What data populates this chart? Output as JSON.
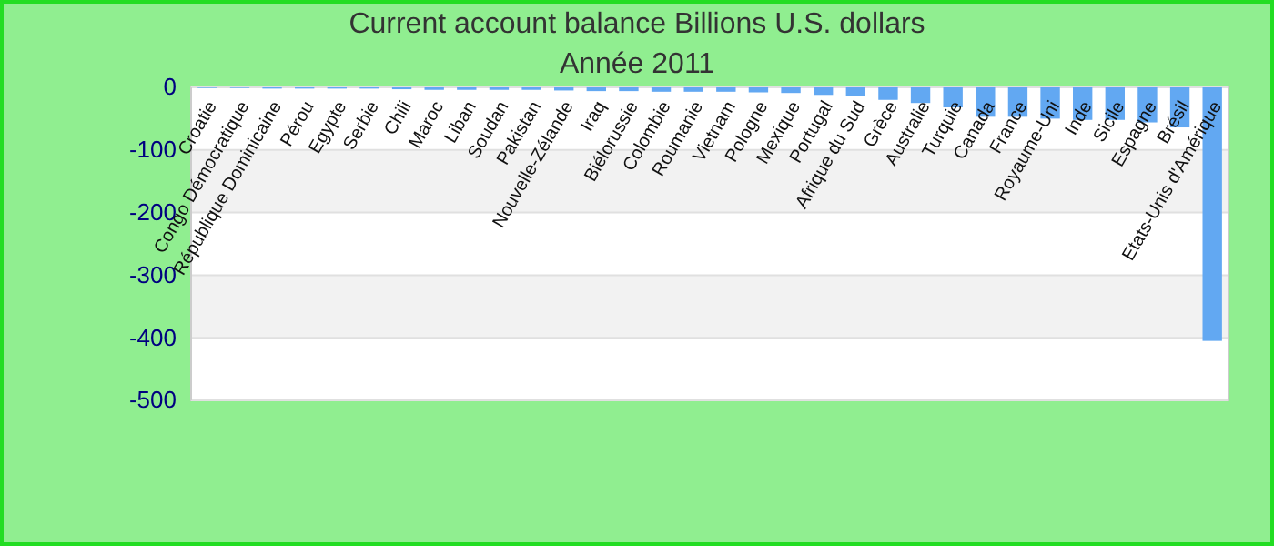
{
  "chart_data": {
    "type": "bar",
    "title": "Current account balance Billions U.S. dollars",
    "subtitle": "Année 2011",
    "categories": [
      "Croatie",
      "Congo Démocratique",
      "République Dominicaine",
      "Pérou",
      "Egypte",
      "Serbie",
      "Chili",
      "Maroc",
      "Liban",
      "Soudan",
      "Pakistan",
      "Nouvelle-Zélande",
      "Iraq",
      "Biélorussie",
      "Colombie",
      "Roumanie",
      "Vietnam",
      "Pologne",
      "Mexique",
      "Portugal",
      "Afrique du Sud",
      "Grèce",
      "Australie",
      "Turquie",
      "Canada",
      "France",
      "Royaume-Uni",
      "Inde",
      "Sicile",
      "Espagne",
      "Brésil",
      "Etats-Unis d'Amérique"
    ],
    "values": [
      -1,
      -1,
      -2,
      -2,
      -2,
      -2,
      -3,
      -4,
      -4,
      -4,
      -4,
      -5,
      -6,
      -6,
      -7,
      -7,
      -7,
      -8,
      -9,
      -12,
      -14,
      -20,
      -25,
      -32,
      -47,
      -47,
      -50,
      -52,
      -52,
      -56,
      -64,
      -405
    ],
    "color": "#62a8f2",
    "ylim": [
      -500,
      0
    ],
    "yticks": [
      -500,
      -400,
      -300,
      -200,
      -100,
      0
    ],
    "grid": true
  }
}
